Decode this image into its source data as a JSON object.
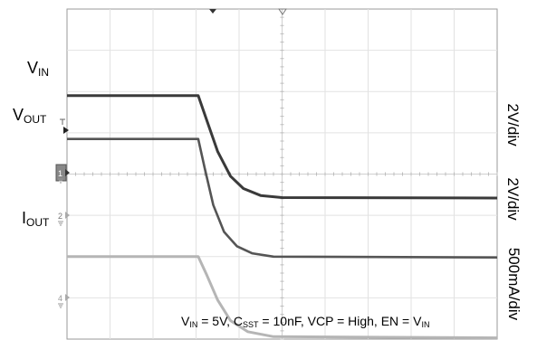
{
  "chart_data": {
    "type": "line",
    "title": "",
    "xlabel": "",
    "ylabel": "",
    "grid": true,
    "x_divisions": 10,
    "y_divisions": 8,
    "series": [
      {
        "name": "VIN",
        "label_main": "V",
        "label_sub": "IN",
        "scale": "2V/div",
        "color": "#3a3a3a",
        "values_div": [
          [
            0,
            5.9
          ],
          [
            3.05,
            5.9
          ],
          [
            3.2,
            5.45
          ],
          [
            3.5,
            4.55
          ],
          [
            3.8,
            3.95
          ],
          [
            4.1,
            3.65
          ],
          [
            4.5,
            3.48
          ],
          [
            5.0,
            3.43
          ],
          [
            10,
            3.42
          ]
        ]
      },
      {
        "name": "VOUT",
        "label_main": "V",
        "label_sub": "OUT",
        "scale": "2V/div",
        "color": "#555555",
        "values_div": [
          [
            0,
            4.85
          ],
          [
            3.05,
            4.85
          ],
          [
            3.2,
            4.15
          ],
          [
            3.4,
            3.25
          ],
          [
            3.65,
            2.6
          ],
          [
            3.95,
            2.25
          ],
          [
            4.3,
            2.08
          ],
          [
            4.8,
            2.0
          ],
          [
            10,
            1.98
          ]
        ]
      },
      {
        "name": "IOUT",
        "label_main": "I",
        "label_sub": "OUT",
        "scale": "500mA/div",
        "color": "#b5b5b5",
        "values_div": [
          [
            0,
            2.0
          ],
          [
            3.05,
            2.0
          ],
          [
            3.25,
            1.55
          ],
          [
            3.5,
            0.95
          ],
          [
            3.8,
            0.45
          ],
          [
            4.2,
            0.18
          ],
          [
            4.8,
            0.06
          ],
          [
            10,
            0.03
          ]
        ]
      }
    ],
    "conditions": {
      "vin_main": "V",
      "vin_sub": "IN",
      "vin_val": " = 5V, C",
      "csst_sub": "SST",
      "csst_val": " = 10nF, VCP = High, EN = V",
      "en_sub": "IN"
    },
    "channel_markers": [
      "1",
      "2",
      "4"
    ]
  }
}
